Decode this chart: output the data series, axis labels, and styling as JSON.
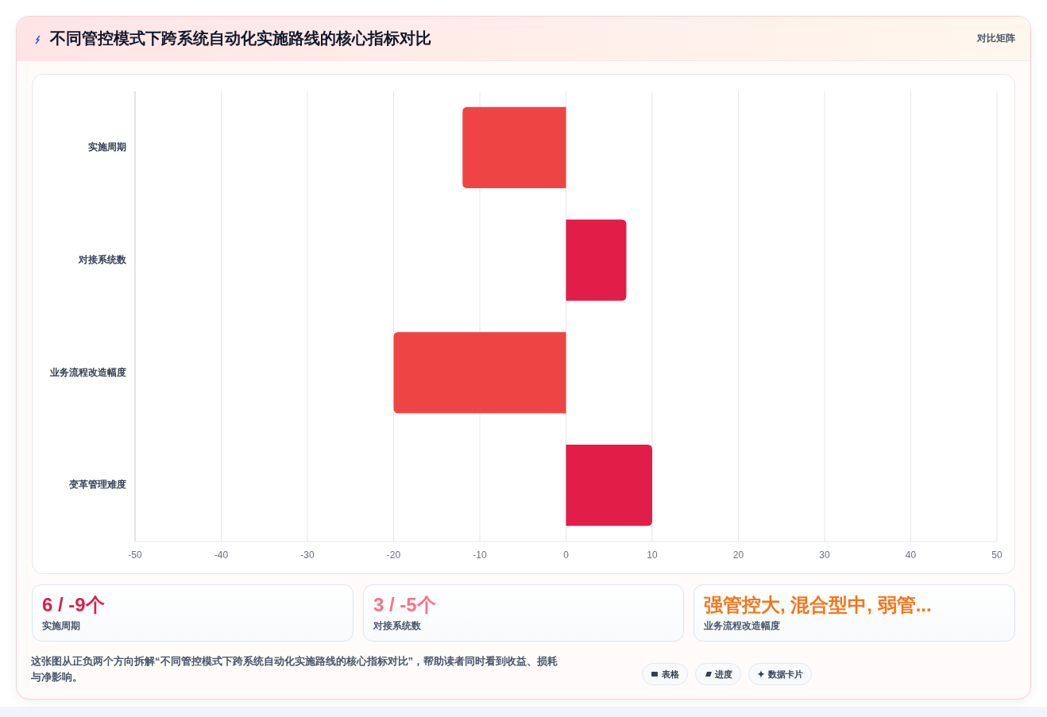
{
  "chart_data": {
    "type": "bar",
    "orientation": "horizontal",
    "title": "不同管控模式下跨系统自动化实施路线的核心指标对比",
    "categories": [
      "实施周期",
      "对接系统数",
      "业务流程改造幅度",
      "变革管理难度"
    ],
    "values": [
      -12,
      7,
      -20,
      10
    ],
    "colors": [
      "#ef4444",
      "#e11d48",
      "#ef4444",
      "#e11d48"
    ],
    "xlim": [
      -50,
      50
    ],
    "xticks": [
      -50,
      -40,
      -30,
      -20,
      -10,
      0,
      10,
      20,
      30,
      40,
      50
    ],
    "grid": "x",
    "annotations": [
      "对比矩阵",
      "6 / -9个",
      "实施周期",
      "3 / -5个",
      "对接系统数",
      "强管控大, 混合型中, 弱管...",
      "业务流程改造幅度",
      "这张图从正负两个方向拆解“不同管控模式下跨系统自动化实施路线的核心指标对比”，帮助读者同时看到收益、损耗与净影响。",
      "表格",
      "进度",
      "数据卡片"
    ]
  }
}
